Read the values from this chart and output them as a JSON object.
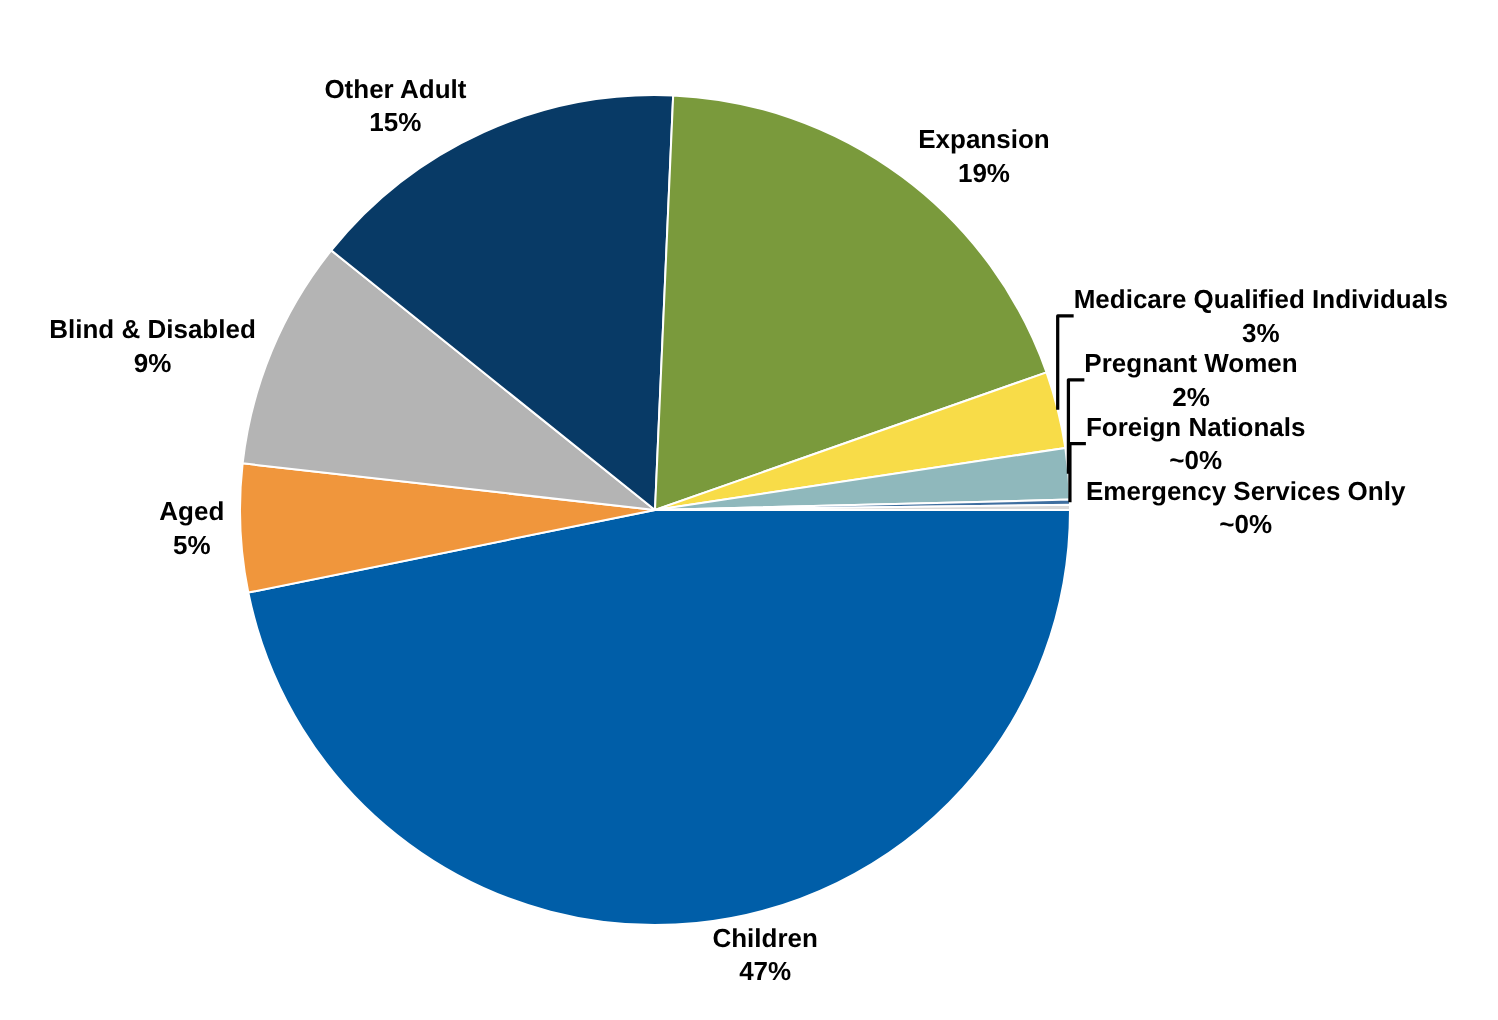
{
  "chart_data": {
    "type": "pie",
    "categories": [
      "Children",
      "Aged",
      "Blind & Disabled",
      "Other Adult",
      "Expansion",
      "Medicare Qualified Individuals",
      "Pregnant Women",
      "Foreign Nationals",
      "Emergency Services Only"
    ],
    "values": [
      47,
      5,
      9,
      15,
      19,
      3,
      2,
      0.2,
      0.2
    ],
    "value_labels": [
      "47%",
      "5%",
      "9%",
      "15%",
      "19%",
      "3%",
      "2%",
      "~0%",
      "~0%"
    ],
    "colors": [
      "#005ea8",
      "#f0963c",
      "#b4b4b4",
      "#083a66",
      "#7a9a3c",
      "#f8dc48",
      "#8fb8bc",
      "#3f6fa0",
      "#d9d9d9"
    ],
    "legend": false
  }
}
